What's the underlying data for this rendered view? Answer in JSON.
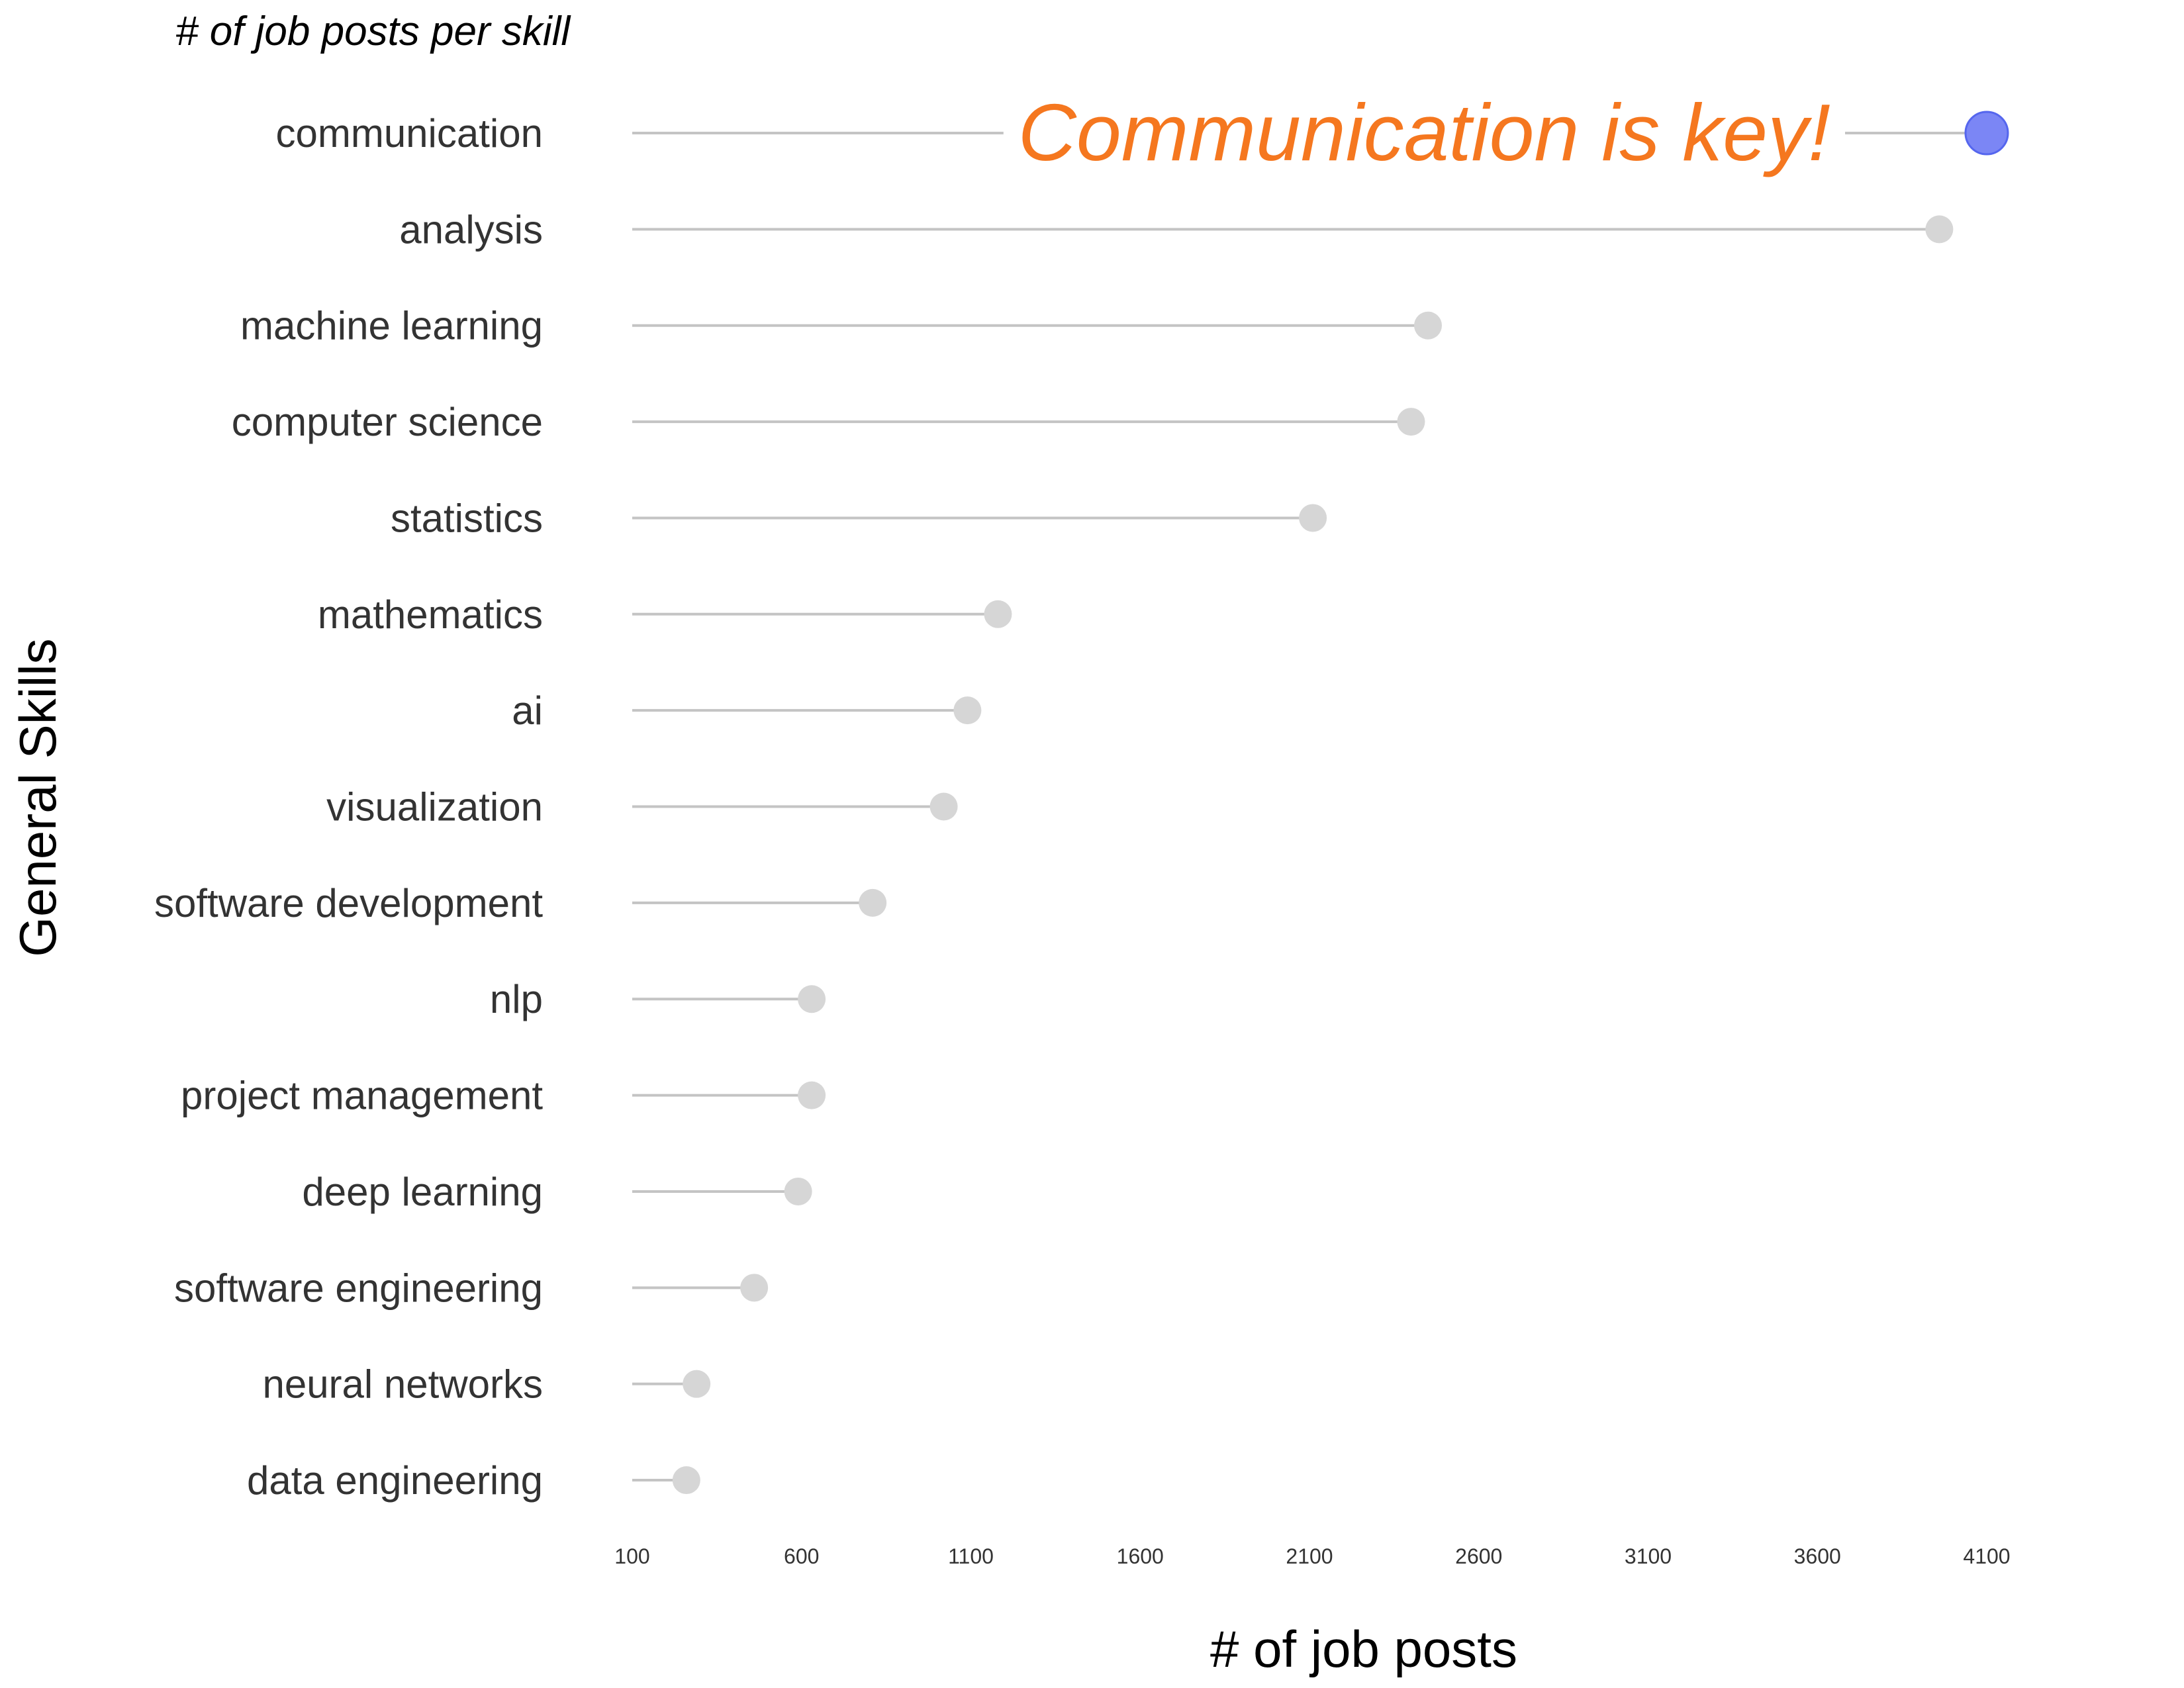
{
  "chart_data": {
    "type": "lollipop",
    "subtitle": "# of job posts per skill",
    "xlabel": "# of job posts",
    "ylabel": "General Skills",
    "xlim": [
      100,
      4100
    ],
    "xticks": [
      "100",
      "600",
      "1100",
      "1600",
      "2100",
      "2600",
      "3100",
      "3600",
      "4100"
    ],
    "grid": false,
    "categories": [
      "communication",
      "analysis",
      "machine learning",
      "computer science",
      "statistics",
      "mathematics",
      "ai ",
      "visualization",
      "software development",
      "nlp",
      "project management",
      "deep learning",
      "software engineering",
      "neural networks",
      "data engineering"
    ],
    "values": [
      4100,
      3960,
      2450,
      2400,
      2110,
      1180,
      1090,
      1020,
      810,
      630,
      630,
      590,
      460,
      290,
      260
    ],
    "highlight_index": 0,
    "annotation": "Communication is key!",
    "colors": {
      "stem": "#c4c4c4",
      "dot": "#d6d6d6",
      "highlight": "#7b86f5",
      "highlight_edge": "#5566ee",
      "annotation": "#f5771f"
    }
  }
}
